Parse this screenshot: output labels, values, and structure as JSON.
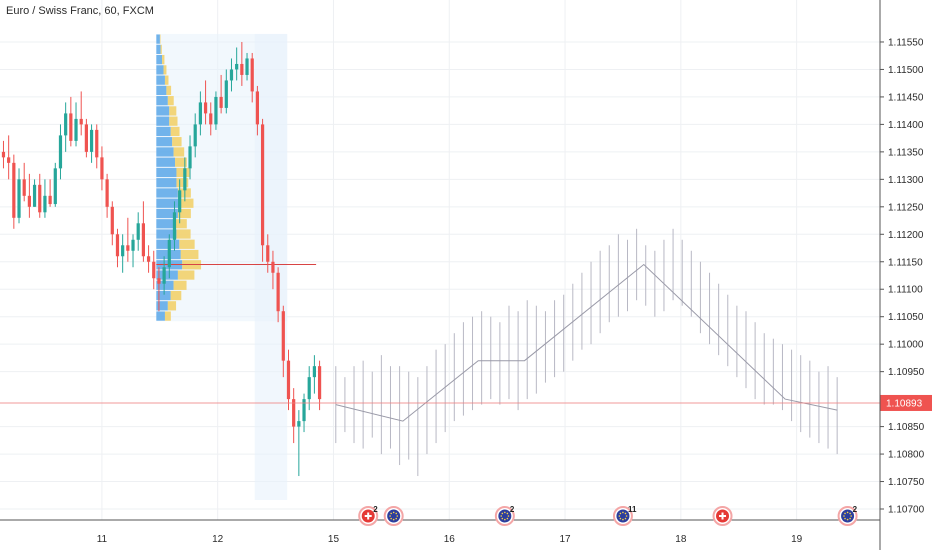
{
  "header": {
    "title": "Euro / Swiss Franc, 60, FXCM"
  },
  "colors": {
    "bullish": "#26a69a",
    "bearish": "#ef5350",
    "projection": "#b8b8c4",
    "price_line": "#f08080",
    "profile_blue": "#5aa7e8",
    "profile_yellow": "#f2cf63",
    "profile_bg": "#e8f2fb",
    "poc": "#d84444",
    "grid": "#eef0f3"
  },
  "chart_data": {
    "type": "candlestick",
    "symbol": "Euro / Swiss Franc",
    "interval": "60",
    "source": "FXCM",
    "y_ticks": [
      "1.11550",
      "1.11500",
      "1.11450",
      "1.11400",
      "1.11350",
      "1.11300",
      "1.11250",
      "1.11200",
      "1.11150",
      "1.11100",
      "1.11050",
      "1.11000",
      "1.10950",
      "1.10850",
      "1.10800",
      "1.10750",
      "1.10700"
    ],
    "ylim": [
      1.1068,
      1.1159
    ],
    "x_ticks": [
      {
        "label": "11",
        "day": 11
      },
      {
        "label": "12",
        "day": 12
      },
      {
        "label": "15",
        "day": 13
      },
      {
        "label": "16",
        "day": 14
      },
      {
        "label": "17",
        "day": 15
      },
      {
        "label": "18",
        "day": 16
      },
      {
        "label": "19",
        "day": 17
      }
    ],
    "xlim": [
      10.12,
      17.72
    ],
    "current_price": {
      "label": "1.10893",
      "value": 1.10893
    },
    "candles_ohlc": [
      [
        1.1135,
        1.1137,
        1.1132,
        1.1134
      ],
      [
        1.1134,
        1.1138,
        1.113,
        1.1133
      ],
      [
        1.1133,
        1.11345,
        1.1121,
        1.1123
      ],
      [
        1.1123,
        1.1132,
        1.1122,
        1.113
      ],
      [
        1.113,
        1.1133,
        1.1126,
        1.1127
      ],
      [
        1.1127,
        1.1131,
        1.1123,
        1.1125
      ],
      [
        1.1125,
        1.113,
        1.1125,
        1.1129
      ],
      [
        1.1129,
        1.1131,
        1.1123,
        1.1124
      ],
      [
        1.1124,
        1.113,
        1.1123,
        1.1127
      ],
      [
        1.1127,
        1.113,
        1.1125,
        1.11255
      ],
      [
        1.11255,
        1.1133,
        1.1125,
        1.1132
      ],
      [
        1.1132,
        1.114,
        1.113,
        1.1138
      ],
      [
        1.1138,
        1.1144,
        1.1135,
        1.1142
      ],
      [
        1.1142,
        1.1145,
        1.1136,
        1.1137
      ],
      [
        1.1137,
        1.1144,
        1.1136,
        1.1141
      ],
      [
        1.1141,
        1.1146,
        1.1138,
        1.114
      ],
      [
        1.114,
        1.1141,
        1.1134,
        1.1135
      ],
      [
        1.1135,
        1.114,
        1.1133,
        1.1139
      ],
      [
        1.1139,
        1.114,
        1.1132,
        1.1134
      ],
      [
        1.1134,
        1.1136,
        1.1128,
        1.113
      ],
      [
        1.113,
        1.1131,
        1.1123,
        1.1125
      ],
      [
        1.1125,
        1.1126,
        1.1118,
        1.112
      ],
      [
        1.112,
        1.1121,
        1.1114,
        1.1116
      ],
      [
        1.1116,
        1.112,
        1.1113,
        1.1118
      ],
      [
        1.1118,
        1.1123,
        1.1115,
        1.1117
      ],
      [
        1.1117,
        1.112,
        1.1114,
        1.1119
      ],
      [
        1.1119,
        1.1124,
        1.1117,
        1.1122
      ],
      [
        1.1122,
        1.1126,
        1.1115,
        1.1116
      ],
      [
        1.1116,
        1.1118,
        1.1113,
        1.1115
      ],
      [
        1.1115,
        1.1117,
        1.111,
        1.1112
      ],
      [
        1.1112,
        1.1114,
        1.1106,
        1.1111
      ],
      [
        1.1111,
        1.1116,
        1.1109,
        1.1114
      ],
      [
        1.1114,
        1.112,
        1.1112,
        1.1119
      ],
      [
        1.1119,
        1.1126,
        1.1117,
        1.1124
      ],
      [
        1.1124,
        1.113,
        1.1122,
        1.1128
      ],
      [
        1.1128,
        1.1134,
        1.1126,
        1.1132
      ],
      [
        1.1132,
        1.1138,
        1.113,
        1.1136
      ],
      [
        1.1136,
        1.1142,
        1.1134,
        1.114
      ],
      [
        1.114,
        1.1146,
        1.1138,
        1.1144
      ],
      [
        1.1144,
        1.1148,
        1.114,
        1.1142
      ],
      [
        1.1142,
        1.1144,
        1.1138,
        1.114
      ],
      [
        1.114,
        1.1146,
        1.1139,
        1.1145
      ],
      [
        1.1145,
        1.1149,
        1.1142,
        1.1143
      ],
      [
        1.1143,
        1.115,
        1.1142,
        1.1148
      ],
      [
        1.1148,
        1.1152,
        1.1146,
        1.115
      ],
      [
        1.115,
        1.1154,
        1.1148,
        1.1151
      ],
      [
        1.1151,
        1.1155,
        1.1147,
        1.1149
      ],
      [
        1.1149,
        1.1153,
        1.1148,
        1.1152
      ],
      [
        1.1152,
        1.1153,
        1.1144,
        1.1146
      ],
      [
        1.1146,
        1.1147,
        1.1138,
        1.114
      ],
      [
        1.114,
        1.1141,
        1.1115,
        1.1118
      ],
      [
        1.1118,
        1.112,
        1.1113,
        1.1115
      ],
      [
        1.1115,
        1.1117,
        1.111,
        1.1113
      ],
      [
        1.1113,
        1.1114,
        1.1104,
        1.1106
      ],
      [
        1.1106,
        1.1107,
        1.1094,
        1.1097
      ],
      [
        1.1097,
        1.1099,
        1.1088,
        1.109
      ],
      [
        1.109,
        1.1092,
        1.1082,
        1.1085
      ],
      [
        1.1085,
        1.1088,
        1.1076,
        1.1086
      ],
      [
        1.1086,
        1.1091,
        1.1084,
        1.109
      ],
      [
        1.109,
        1.1096,
        1.1088,
        1.1094
      ],
      [
        1.1094,
        1.1098,
        1.1091,
        1.1096
      ],
      [
        1.1096,
        1.1097,
        1.1088,
        1.109
      ]
    ],
    "projection_ranges": [
      [
        1.1082,
        1.1096
      ],
      [
        1.1084,
        1.1094
      ],
      [
        1.1082,
        1.1096
      ],
      [
        1.1081,
        1.1097
      ],
      [
        1.1083,
        1.1095
      ],
      [
        1.108,
        1.1098
      ],
      [
        1.1081,
        1.1096
      ],
      [
        1.1078,
        1.1096
      ],
      [
        1.1079,
        1.1095
      ],
      [
        1.1076,
        1.1094
      ],
      [
        1.108,
        1.1096
      ],
      [
        1.1082,
        1.1099
      ],
      [
        1.1084,
        1.11
      ],
      [
        1.1086,
        1.1102
      ],
      [
        1.1087,
        1.1104
      ],
      [
        1.1088,
        1.1105
      ],
      [
        1.1089,
        1.1106
      ],
      [
        1.109,
        1.1105
      ],
      [
        1.1089,
        1.1104
      ],
      [
        1.109,
        1.1107
      ],
      [
        1.1088,
        1.1106
      ],
      [
        1.109,
        1.1108
      ],
      [
        1.1091,
        1.1107
      ],
      [
        1.1093,
        1.1106
      ],
      [
        1.1094,
        1.1108
      ],
      [
        1.1095,
        1.1109
      ],
      [
        1.1097,
        1.1111
      ],
      [
        1.1099,
        1.1113
      ],
      [
        1.11,
        1.1115
      ],
      [
        1.1102,
        1.1117
      ],
      [
        1.1104,
        1.1118
      ],
      [
        1.1105,
        1.112
      ],
      [
        1.1106,
        1.1119
      ],
      [
        1.1108,
        1.1121
      ],
      [
        1.1107,
        1.1118
      ],
      [
        1.1105,
        1.1117
      ],
      [
        1.1106,
        1.1119
      ],
      [
        1.1108,
        1.1121
      ],
      [
        1.1107,
        1.1119
      ],
      [
        1.1105,
        1.1117
      ],
      [
        1.1102,
        1.1115
      ],
      [
        1.11,
        1.1113
      ],
      [
        1.1098,
        1.1111
      ],
      [
        1.1096,
        1.1109
      ],
      [
        1.1094,
        1.1107
      ],
      [
        1.1092,
        1.1106
      ],
      [
        1.109,
        1.1104
      ],
      [
        1.1089,
        1.1102
      ],
      [
        1.1089,
        1.1101
      ],
      [
        1.1088,
        1.11
      ],
      [
        1.1086,
        1.1099
      ],
      [
        1.1084,
        1.1098
      ],
      [
        1.1083,
        1.1097
      ],
      [
        1.1082,
        1.1095
      ],
      [
        1.1081,
        1.1096
      ],
      [
        1.108,
        1.1094
      ]
    ],
    "projection_path": [
      {
        "day": 13.02,
        "value": 1.1089
      },
      {
        "day": 13.6,
        "value": 1.1086
      },
      {
        "day": 14.25,
        "value": 1.1097
      },
      {
        "day": 14.65,
        "value": 1.1097
      },
      {
        "day": 15.68,
        "value": 1.11145
      },
      {
        "day": 16.9,
        "value": 1.109
      },
      {
        "day": 17.35,
        "value": 1.1088
      }
    ],
    "volume_profile": {
      "range": [
        1.1106,
        1.1155
      ],
      "poc": 1.11145,
      "rows": [
        [
          0.05,
          0.01
        ],
        [
          0.06,
          0.02
        ],
        [
          0.08,
          0.04
        ],
        [
          0.1,
          0.05
        ],
        [
          0.12,
          0.06
        ],
        [
          0.14,
          0.08
        ],
        [
          0.16,
          0.1
        ],
        [
          0.18,
          0.12
        ],
        [
          0.18,
          0.14
        ],
        [
          0.2,
          0.15
        ],
        [
          0.22,
          0.16
        ],
        [
          0.24,
          0.18
        ],
        [
          0.26,
          0.2
        ],
        [
          0.28,
          0.22
        ],
        [
          0.28,
          0.2
        ],
        [
          0.3,
          0.22
        ],
        [
          0.32,
          0.24
        ],
        [
          0.3,
          0.22
        ],
        [
          0.26,
          0.2
        ],
        [
          0.28,
          0.24
        ],
        [
          0.32,
          0.26
        ],
        [
          0.34,
          0.3
        ],
        [
          0.36,
          0.32
        ],
        [
          0.3,
          0.28
        ],
        [
          0.24,
          0.22
        ],
        [
          0.2,
          0.18
        ],
        [
          0.16,
          0.14
        ],
        [
          0.12,
          0.1
        ]
      ]
    },
    "events": [
      {
        "day": 13.3,
        "icon": "swiss-flag",
        "count": "2"
      },
      {
        "day": 13.52,
        "icon": "eu-flag",
        "count": ""
      },
      {
        "day": 14.48,
        "icon": "eu-flag",
        "count": "2"
      },
      {
        "day": 15.5,
        "icon": "eu-flag",
        "count": "11"
      },
      {
        "day": 16.36,
        "icon": "swiss-flag",
        "count": ""
      },
      {
        "day": 17.44,
        "icon": "eu-flag",
        "count": "2"
      }
    ]
  }
}
